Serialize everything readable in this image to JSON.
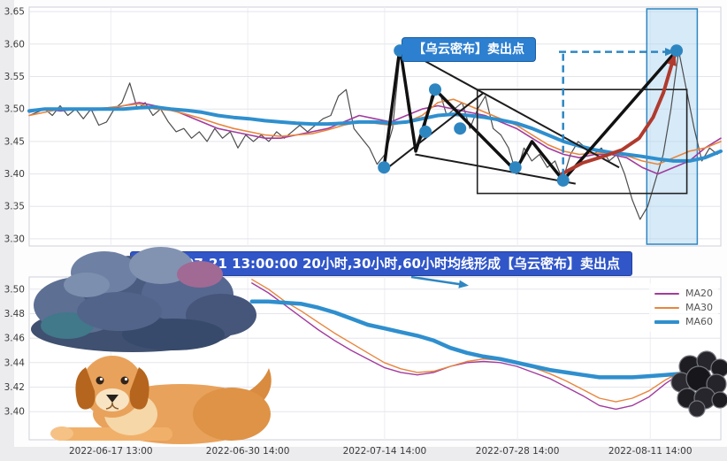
{
  "annotations": {
    "sell_point_label": "【乌云密布】卖出点",
    "banner_text": "2022-07-21 13:00:00 20小时,30小时,60小时均线形成【乌云密布】卖出点"
  },
  "colors": {
    "ma20": "#a23b9e",
    "ma30": "#e8853d",
    "ma60": "#2f8fce",
    "price": "#4d4d4d",
    "signal_red": "#b03a2e",
    "marker_blue": "#2e86c1",
    "annotation_bg": "#2d7fd0",
    "banner_bg": "#3156c8",
    "highlight_fill": "#aed6f1",
    "highlight_border": "#2e86c1"
  },
  "chart_data": [
    {
      "type": "line",
      "title": "",
      "ylim": [
        3.3,
        3.65
      ],
      "yticks": [
        3.65,
        3.6,
        3.55,
        3.5,
        3.45,
        3.4,
        3.35,
        3.3
      ],
      "grid": true,
      "series": [
        {
          "name": "price",
          "color_key": "price",
          "width": 1.2,
          "x0": 0,
          "x1": 0.995,
          "values": [
            3.49,
            3.495,
            3.5,
            3.49,
            3.505,
            3.49,
            3.5,
            3.485,
            3.5,
            3.475,
            3.48,
            3.5,
            3.51,
            3.54,
            3.5,
            3.51,
            3.49,
            3.5,
            3.48,
            3.465,
            3.47,
            3.455,
            3.465,
            3.45,
            3.47,
            3.455,
            3.465,
            3.44,
            3.46,
            3.45,
            3.46,
            3.45,
            3.465,
            3.455,
            3.465,
            3.475,
            3.465,
            3.475,
            3.485,
            3.49,
            3.52,
            3.53,
            3.47,
            3.455,
            3.44,
            3.415,
            3.43,
            3.47,
            3.59,
            3.5,
            3.44,
            3.46,
            3.52,
            3.53,
            3.49,
            3.5,
            3.51,
            3.47,
            3.5,
            3.52,
            3.47,
            3.46,
            3.44,
            3.4,
            3.44,
            3.42,
            3.43,
            3.41,
            3.42,
            3.39,
            3.43,
            3.45,
            3.44,
            3.43,
            3.44,
            3.42,
            3.43,
            3.4,
            3.36,
            3.33,
            3.35,
            3.39,
            3.43,
            3.5,
            3.59,
            3.53,
            3.47,
            3.42,
            3.44,
            3.43
          ]
        },
        {
          "name": "MA20",
          "color_key": "ma20",
          "width": 1.6,
          "x0": 0,
          "x1": 1,
          "values": [
            3.495,
            3.5,
            3.497,
            3.5,
            3.498,
            3.5,
            3.505,
            3.51,
            3.505,
            3.5,
            3.49,
            3.48,
            3.47,
            3.465,
            3.46,
            3.455,
            3.455,
            3.46,
            3.465,
            3.47,
            3.48,
            3.49,
            3.485,
            3.48,
            3.49,
            3.5,
            3.505,
            3.5,
            3.495,
            3.49,
            3.48,
            3.47,
            3.455,
            3.44,
            3.43,
            3.425,
            3.43,
            3.43,
            3.425,
            3.41,
            3.4,
            3.41,
            3.42,
            3.44,
            3.455
          ]
        },
        {
          "name": "MA30",
          "color_key": "ma30",
          "width": 1.6,
          "x0": 0,
          "x1": 1,
          "values": [
            3.49,
            3.495,
            3.5,
            3.5,
            3.5,
            3.502,
            3.505,
            3.508,
            3.5,
            3.498,
            3.492,
            3.485,
            3.477,
            3.47,
            3.465,
            3.46,
            3.458,
            3.46,
            3.462,
            3.468,
            3.475,
            3.48,
            3.478,
            3.475,
            3.48,
            3.49,
            3.51,
            3.515,
            3.505,
            3.495,
            3.485,
            3.475,
            3.46,
            3.445,
            3.435,
            3.43,
            3.432,
            3.432,
            3.428,
            3.42,
            3.415,
            3.425,
            3.435,
            3.44,
            3.45
          ]
        },
        {
          "name": "MA60",
          "color_key": "ma60",
          "width": 4,
          "x0": 0,
          "x1": 1,
          "values": [
            3.497,
            3.5,
            3.5,
            3.5,
            3.5,
            3.5,
            3.5,
            3.502,
            3.503,
            3.5,
            3.498,
            3.495,
            3.49,
            3.487,
            3.485,
            3.482,
            3.48,
            3.478,
            3.477,
            3.477,
            3.478,
            3.48,
            3.48,
            3.478,
            3.48,
            3.485,
            3.49,
            3.492,
            3.49,
            3.487,
            3.483,
            3.478,
            3.47,
            3.46,
            3.45,
            3.443,
            3.437,
            3.433,
            3.43,
            3.427,
            3.423,
            3.42,
            3.42,
            3.425,
            3.435
          ]
        }
      ],
      "markers": {
        "x": [
          0.513,
          0.536,
          0.573,
          0.587,
          0.623,
          0.703,
          0.772,
          0.936
        ],
        "y": [
          3.41,
          3.59,
          3.465,
          3.53,
          3.47,
          3.41,
          3.39,
          3.59
        ]
      },
      "zigzag": [
        [
          0.513,
          3.41
        ],
        [
          0.536,
          3.595
        ],
        [
          0.559,
          3.435
        ],
        [
          0.587,
          3.53
        ],
        [
          0.703,
          3.405
        ],
        [
          0.727,
          3.45
        ],
        [
          0.772,
          3.39
        ],
        [
          0.936,
          3.59
        ]
      ],
      "trend_lines": [
        [
          [
            0.536,
            3.595
          ],
          [
            0.853,
            3.41
          ]
        ],
        [
          [
            0.513,
            3.405
          ],
          [
            0.657,
            3.525
          ]
        ],
        [
          [
            0.558,
            3.43
          ],
          [
            0.79,
            3.385
          ]
        ]
      ],
      "signal_curve": [
        [
          0.77,
          3.4
        ],
        [
          0.8,
          3.417
        ],
        [
          0.83,
          3.427
        ],
        [
          0.857,
          3.437
        ],
        [
          0.882,
          3.455
        ],
        [
          0.902,
          3.487
        ],
        [
          0.917,
          3.525
        ],
        [
          0.928,
          3.565
        ],
        [
          0.934,
          3.585
        ]
      ],
      "dashed_vline": {
        "x": 0.772,
        "v0": 3.585,
        "v1": 3.395
      },
      "dashed_arrow": {
        "x0": 0.766,
        "x1": 0.922,
        "v": 3.588
      },
      "highlight_band": {
        "x0": 0.893,
        "x1": 0.966
      },
      "pattern_box": {
        "x0": 0.648,
        "x1": 0.951,
        "v0": 3.37,
        "v1": 3.53
      }
    },
    {
      "type": "line",
      "title": "",
      "ylim": [
        3.39,
        3.51
      ],
      "yticks": [
        3.5,
        3.48,
        3.46,
        3.44,
        3.42,
        3.4
      ],
      "xticklabels": [
        "2022-06-17 13:00",
        "2022-06-30 14:00",
        "2022-07-14 14:00",
        "2022-07-28 14:00",
        "2022-08-11 14:00"
      ],
      "xtick_pos": [
        0.118,
        0.316,
        0.514,
        0.706,
        0.898
      ],
      "legend": [
        "MA20",
        "MA30",
        "MA60"
      ],
      "legend_position": "upper right",
      "grid": true,
      "series": [
        {
          "name": "MA20",
          "color_key": "ma20",
          "width": 1.4,
          "x0": 0.322,
          "x1": 0.968,
          "values": [
            3.505,
            3.497,
            3.487,
            3.477,
            3.467,
            3.458,
            3.45,
            3.443,
            3.436,
            3.432,
            3.43,
            3.432,
            3.437,
            3.44,
            3.441,
            3.44,
            3.437,
            3.432,
            3.427,
            3.42,
            3.413,
            3.405,
            3.402,
            3.405,
            3.412,
            3.423,
            3.432,
            3.436
          ]
        },
        {
          "name": "MA30",
          "color_key": "ma30",
          "width": 1.4,
          "x0": 0.322,
          "x1": 0.968,
          "values": [
            3.508,
            3.5,
            3.49,
            3.482,
            3.473,
            3.464,
            3.456,
            3.448,
            3.44,
            3.435,
            3.432,
            3.433,
            3.437,
            3.441,
            3.443,
            3.442,
            3.44,
            3.436,
            3.431,
            3.425,
            3.418,
            3.411,
            3.408,
            3.411,
            3.417,
            3.426,
            3.433,
            3.437
          ]
        },
        {
          "name": "MA60",
          "color_key": "ma60",
          "width": 4.5,
          "x0": 0.322,
          "x1": 0.968,
          "values": [
            3.49,
            3.49,
            3.489,
            3.488,
            3.485,
            3.481,
            3.476,
            3.471,
            3.468,
            3.465,
            3.462,
            3.458,
            3.452,
            3.448,
            3.445,
            3.443,
            3.44,
            3.437,
            3.434,
            3.432,
            3.43,
            3.428,
            3.428,
            3.428,
            3.429,
            3.43,
            3.431,
            3.432
          ]
        }
      ]
    }
  ]
}
